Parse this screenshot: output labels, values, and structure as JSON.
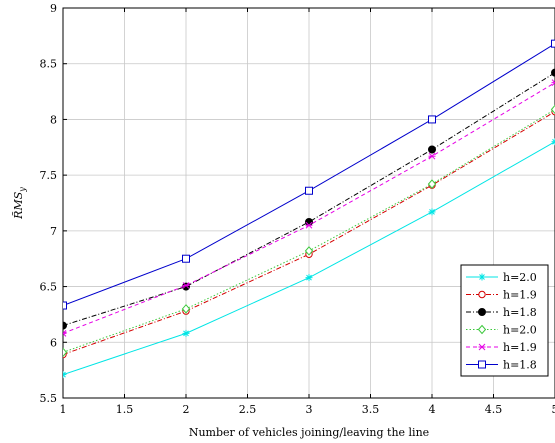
{
  "chart_data": {
    "type": "line",
    "xlabel": "Number of vehicles joining/leaving the line",
    "ylabel": "R̃MS y",
    "ylabel_main": "R̃MS",
    "ylabel_sub": "y",
    "xlim": [
      1,
      5
    ],
    "ylim": [
      5.5,
      9
    ],
    "grid": true,
    "legend_position": "bottom-right",
    "x_ticks": [
      1,
      1.5,
      2,
      2.5,
      3,
      3.5,
      4,
      4.5,
      5
    ],
    "x_tick_labels": [
      "1",
      "1.5",
      "2",
      "2.5",
      "3",
      "3.5",
      "4",
      "4.5",
      "5"
    ],
    "y_ticks": [
      5.5,
      6,
      6.5,
      7,
      7.5,
      8,
      8.5,
      9
    ],
    "y_tick_labels": [
      "5.5",
      "6",
      "6.5",
      "7",
      "7.5",
      "8",
      "8.5",
      "9"
    ],
    "series": [
      {
        "name": "h=2.0",
        "color": "#00e5e5",
        "dash": "solid",
        "marker": "star",
        "x": [
          1,
          2,
          3,
          4,
          5
        ],
        "values": [
          5.71,
          6.08,
          6.58,
          7.17,
          7.8
        ]
      },
      {
        "name": "h=1.9",
        "color": "#d40000",
        "dash": "dashdot",
        "marker": "circle-open",
        "x": [
          1,
          2,
          3,
          4,
          5
        ],
        "values": [
          5.89,
          6.28,
          6.79,
          7.41,
          8.07
        ]
      },
      {
        "name": "h=1.8",
        "color": "#000000",
        "dash": "dashdot",
        "marker": "circle-filled",
        "x": [
          1,
          2,
          3,
          4,
          5
        ],
        "values": [
          6.15,
          6.5,
          7.08,
          7.73,
          8.42
        ]
      },
      {
        "name": "h=2.0",
        "color": "#3cc83c",
        "dash": "dotted",
        "marker": "diamond-open",
        "x": [
          1,
          2,
          3,
          4,
          5
        ],
        "values": [
          5.91,
          6.3,
          6.82,
          7.42,
          8.09
        ]
      },
      {
        "name": "h=1.9",
        "color": "#e600e6",
        "dash": "dashed",
        "marker": "x",
        "x": [
          1,
          2,
          3,
          4,
          5
        ],
        "values": [
          6.08,
          6.51,
          7.05,
          7.67,
          8.33
        ]
      },
      {
        "name": "h=1.8",
        "color": "#0000cc",
        "dash": "solid",
        "marker": "square-open",
        "x": [
          1,
          2,
          3,
          4,
          5
        ],
        "values": [
          6.33,
          6.75,
          7.36,
          8.0,
          8.68
        ]
      }
    ]
  }
}
